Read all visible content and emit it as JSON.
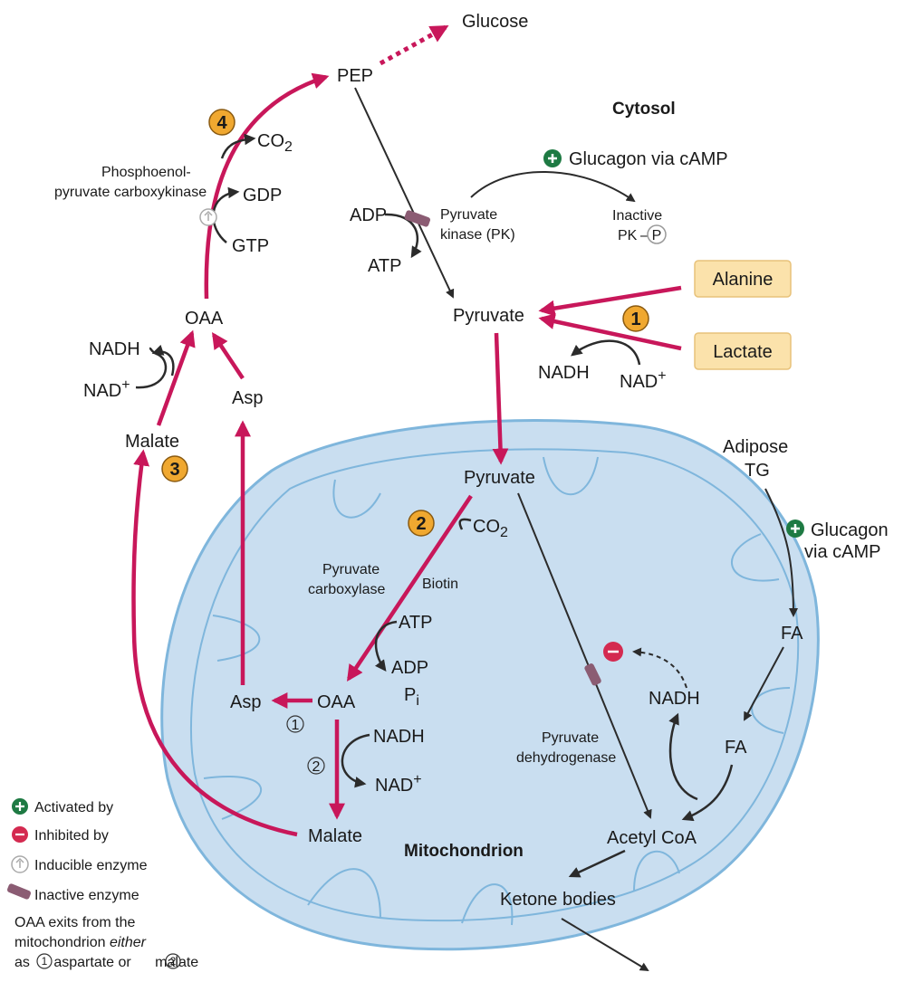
{
  "colors": {
    "pathway": "#c8175a",
    "arrow": "#2b2b2b",
    "mito_fill": "#c9def0",
    "mito_stroke": "#7fb6dc",
    "step_badge": "#f0a830",
    "substrate_box": "#fbe2ab",
    "activator": "#1e7a43",
    "inhibitor": "#d42a50",
    "inactive_enzyme": "#8b5c73"
  },
  "compartments": {
    "cytosol": "Cytosol",
    "mitochondrion": "Mitochondrion"
  },
  "cytosol": {
    "glucose": "Glucose",
    "pep": "PEP",
    "co2": "CO",
    "co2_sub": "2",
    "gdp": "GDP",
    "gtp": "GTP",
    "pepck_line1": "Phosphoenol-",
    "pepck_line2": "pyruvate carboxykinase",
    "oaa": "OAA",
    "nadh": "NADH",
    "nad": "NAD",
    "nad_sup": "+",
    "asp": "Asp",
    "malate": "Malate",
    "adp": "ADP",
    "atp": "ATP",
    "pk_line1": "Pyruvate",
    "pk_line2": "kinase (PK)",
    "glucagon": "Glucagon via cAMP",
    "inactive_line1": "Inactive",
    "inactive_pk": "PK",
    "phospho": "P",
    "pyruvate": "Pyruvate",
    "alanine": "Alanine",
    "lactate": "Lactate",
    "nadh2": "NADH",
    "nad2": "NAD",
    "nad2_sup": "+"
  },
  "steps": [
    "1",
    "2",
    "3",
    "4"
  ],
  "mito": {
    "pyruvate": "Pyruvate",
    "co2": "CO",
    "co2_sub": "2",
    "pc_line1": "Pyruvate",
    "pc_line2": "carboxylase",
    "biotin": "Biotin",
    "atp": "ATP",
    "adp": "ADP",
    "pi": "P",
    "pi_sub": "i",
    "oaa": "OAA",
    "asp": "Asp",
    "route1": "1",
    "route2": "2",
    "nadh": "NADH",
    "nad": "NAD",
    "nad_sup": "+",
    "malate": "Malate",
    "pdh_line1": "Pyruvate",
    "pdh_line2": "dehydrogenase",
    "nadh2": "NADH",
    "fa_inner": "FA",
    "acetyl_coa": "Acetyl CoA",
    "ketone": "Ketone bodies"
  },
  "adipose": {
    "line1": "Adipose",
    "line2": "TG",
    "glucagon_line1": "Glucagon",
    "glucagon_line2": "via cAMP",
    "fa": "FA"
  },
  "legend": {
    "activated": "Activated by",
    "inhibited": "Inhibited by",
    "inducible": "Inducible enzyme",
    "inactive": "Inactive enzyme",
    "note_line1": "OAA exits from the",
    "note_line2_a": "mitochondrion ",
    "note_line2_b": "either",
    "note_line3_a": "as ",
    "note_line3_b": "aspartate or ",
    "note_line3_c": "malate",
    "n1": "1",
    "n2": "2"
  }
}
